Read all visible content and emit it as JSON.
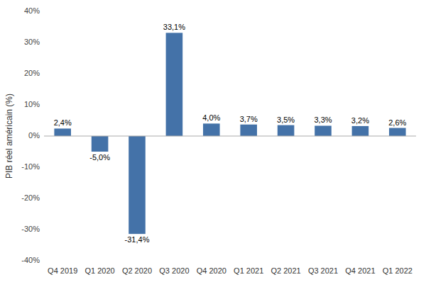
{
  "chart_data": {
    "type": "bar",
    "categories": [
      "Q4 2019",
      "Q1 2020",
      "Q2 2020",
      "Q3 2020",
      "Q4 2020",
      "Q1 2021",
      "Q2 2021",
      "Q3 2021",
      "Q4 2021",
      "Q1 2022"
    ],
    "values": [
      2.4,
      -5.0,
      -31.4,
      33.1,
      4.0,
      3.7,
      3.5,
      3.3,
      3.2,
      2.6
    ],
    "value_labels": [
      "2,4%",
      "-5,0%",
      "-31,4%",
      "33,1%",
      "4,0%",
      "3,7%",
      "3,5%",
      "3,3%",
      "3,2%",
      "2,6%"
    ],
    "data_labels": true,
    "color": "#4472a8",
    "y_label": "PIB réel américain (%)",
    "ylim": [
      -40,
      40
    ],
    "yticks": [
      {
        "value": -40,
        "label": "-40%"
      },
      {
        "value": -30,
        "label": "-30%"
      },
      {
        "value": -20,
        "label": "-20%"
      },
      {
        "value": -10,
        "label": "-10%"
      },
      {
        "value": 0,
        "label": "0%"
      },
      {
        "value": 10,
        "label": "10%"
      },
      {
        "value": 20,
        "label": "20%"
      },
      {
        "value": 30,
        "label": "30%"
      },
      {
        "value": 40,
        "label": "40%"
      }
    ],
    "grid": false
  }
}
